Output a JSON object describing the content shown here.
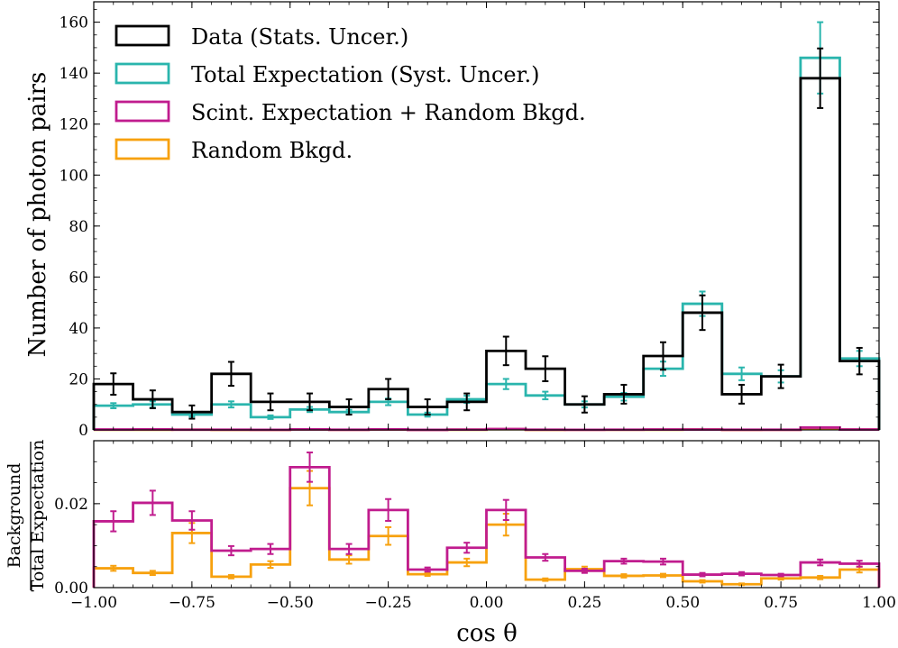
{
  "chart_data": [
    {
      "type": "histogram",
      "panel": "main",
      "ylabel": "Number of photon pairs",
      "xlim": [
        -1.0,
        1.0
      ],
      "ylim": [
        0,
        168
      ],
      "yticks": [
        "0",
        "20",
        "40",
        "60",
        "80",
        "100",
        "120",
        "140",
        "160"
      ],
      "ytick_values": [
        0,
        20,
        40,
        60,
        80,
        100,
        120,
        140,
        160
      ],
      "bin_edges": [
        -1.0,
        -0.9,
        -0.8,
        -0.7,
        -0.6,
        -0.5,
        -0.4,
        -0.3,
        -0.2,
        -0.1,
        0.0,
        0.1,
        0.2,
        0.3,
        0.4,
        0.5,
        0.6,
        0.7,
        0.8,
        0.9,
        1.0
      ],
      "legend_position": "top-left",
      "series": [
        {
          "name": "Data (Stats. Uncer.)",
          "color": "#000000",
          "values": [
            18,
            12,
            7,
            22,
            11,
            11,
            9,
            16,
            9,
            11,
            31,
            24,
            10,
            14,
            29,
            46,
            14,
            21,
            138,
            27
          ],
          "errors": [
            4.2,
            3.5,
            2.6,
            4.7,
            3.3,
            3.3,
            3.0,
            4.0,
            3.0,
            3.3,
            5.6,
            4.9,
            3.2,
            3.7,
            5.4,
            6.8,
            3.7,
            4.6,
            11.7,
            5.2
          ]
        },
        {
          "name": "Total Expectation (Syst. Uncer.)",
          "color": "#2ab5ad",
          "values": [
            9.5,
            10,
            6,
            10,
            5,
            8,
            7,
            11,
            6,
            12,
            18,
            13.5,
            10,
            13,
            24,
            49.5,
            22,
            21,
            146,
            28
          ],
          "errors": [
            1.0,
            1.2,
            0.8,
            1.2,
            0.7,
            1.0,
            0.9,
            1.3,
            0.8,
            1.4,
            2.0,
            1.5,
            1.2,
            1.5,
            2.8,
            4.8,
            2.5,
            2.4,
            14,
            3.0
          ]
        },
        {
          "name": "Scint. Expectation + Random Bkgd.",
          "color": "#c01c8e",
          "values": [
            0.15,
            0.2,
            0.1,
            0.1,
            0.05,
            0.2,
            0.07,
            0.2,
            0.03,
            0.12,
            0.35,
            0.1,
            0.04,
            0.08,
            0.15,
            0.15,
            0.07,
            0.06,
            0.9,
            0.15
          ]
        },
        {
          "name": "Random Bkgd.",
          "color": "#f7a10e",
          "values": [
            0.05,
            0.04,
            0.08,
            0.03,
            0.03,
            0.19,
            0.05,
            0.14,
            0.02,
            0.07,
            0.27,
            0.03,
            0.04,
            0.04,
            0.07,
            0.15,
            0.02,
            0.04,
            0.35,
            0.12
          ]
        }
      ]
    },
    {
      "type": "histogram",
      "panel": "ratio",
      "ylabel_numerator": "Background",
      "ylabel_denominator": "Total Expectation",
      "xlabel": "cos θ",
      "xlim": [
        -1.0,
        1.0
      ],
      "ylim": [
        0,
        0.035
      ],
      "yticks": [
        "0.00",
        "0.02"
      ],
      "ytick_values": [
        0,
        0.02
      ],
      "xticks": [
        "−1.00",
        "−0.75",
        "−0.50",
        "−0.25",
        "0.00",
        "0.25",
        "0.50",
        "0.75",
        "1.00"
      ],
      "xtick_values": [
        -1.0,
        -0.75,
        -0.5,
        -0.25,
        0.0,
        0.25,
        0.5,
        0.75,
        1.0
      ],
      "bin_edges": [
        -1.0,
        -0.9,
        -0.8,
        -0.7,
        -0.6,
        -0.5,
        -0.4,
        -0.3,
        -0.2,
        -0.1,
        0.0,
        0.1,
        0.2,
        0.3,
        0.4,
        0.5,
        0.6,
        0.7,
        0.8,
        0.9,
        1.0
      ],
      "series": [
        {
          "name": "Scint. Expectation + Random Bkgd.",
          "color": "#c01c8e",
          "values": [
            0.0158,
            0.0202,
            0.016,
            0.0088,
            0.0092,
            0.0287,
            0.0092,
            0.0185,
            0.0043,
            0.0095,
            0.0185,
            0.0072,
            0.004,
            0.0063,
            0.0062,
            0.0031,
            0.0033,
            0.003,
            0.006,
            0.0057
          ],
          "errors": [
            0.0024,
            0.0029,
            0.0022,
            0.0011,
            0.0012,
            0.0035,
            0.0012,
            0.0026,
            0.0005,
            0.0012,
            0.0024,
            0.0008,
            0.0005,
            0.0006,
            0.0007,
            0.0004,
            0.0004,
            0.0003,
            0.0007,
            0.0007
          ]
        },
        {
          "name": "Random Bkgd.",
          "color": "#f7a10e",
          "values": [
            0.0046,
            0.0035,
            0.013,
            0.0026,
            0.0055,
            0.0237,
            0.0067,
            0.0123,
            0.0032,
            0.006,
            0.015,
            0.0019,
            0.0044,
            0.0028,
            0.0029,
            0.0015,
            0.0008,
            0.0022,
            0.0024,
            0.0043
          ],
          "errors": [
            0.0006,
            0.0005,
            0.0024,
            0.0004,
            0.0008,
            0.0041,
            0.001,
            0.0021,
            0.0004,
            0.0009,
            0.0026,
            0.0003,
            0.0006,
            0.0004,
            0.0004,
            0.0003,
            0.0002,
            0.0003,
            0.0004,
            0.0007
          ]
        }
      ]
    }
  ]
}
